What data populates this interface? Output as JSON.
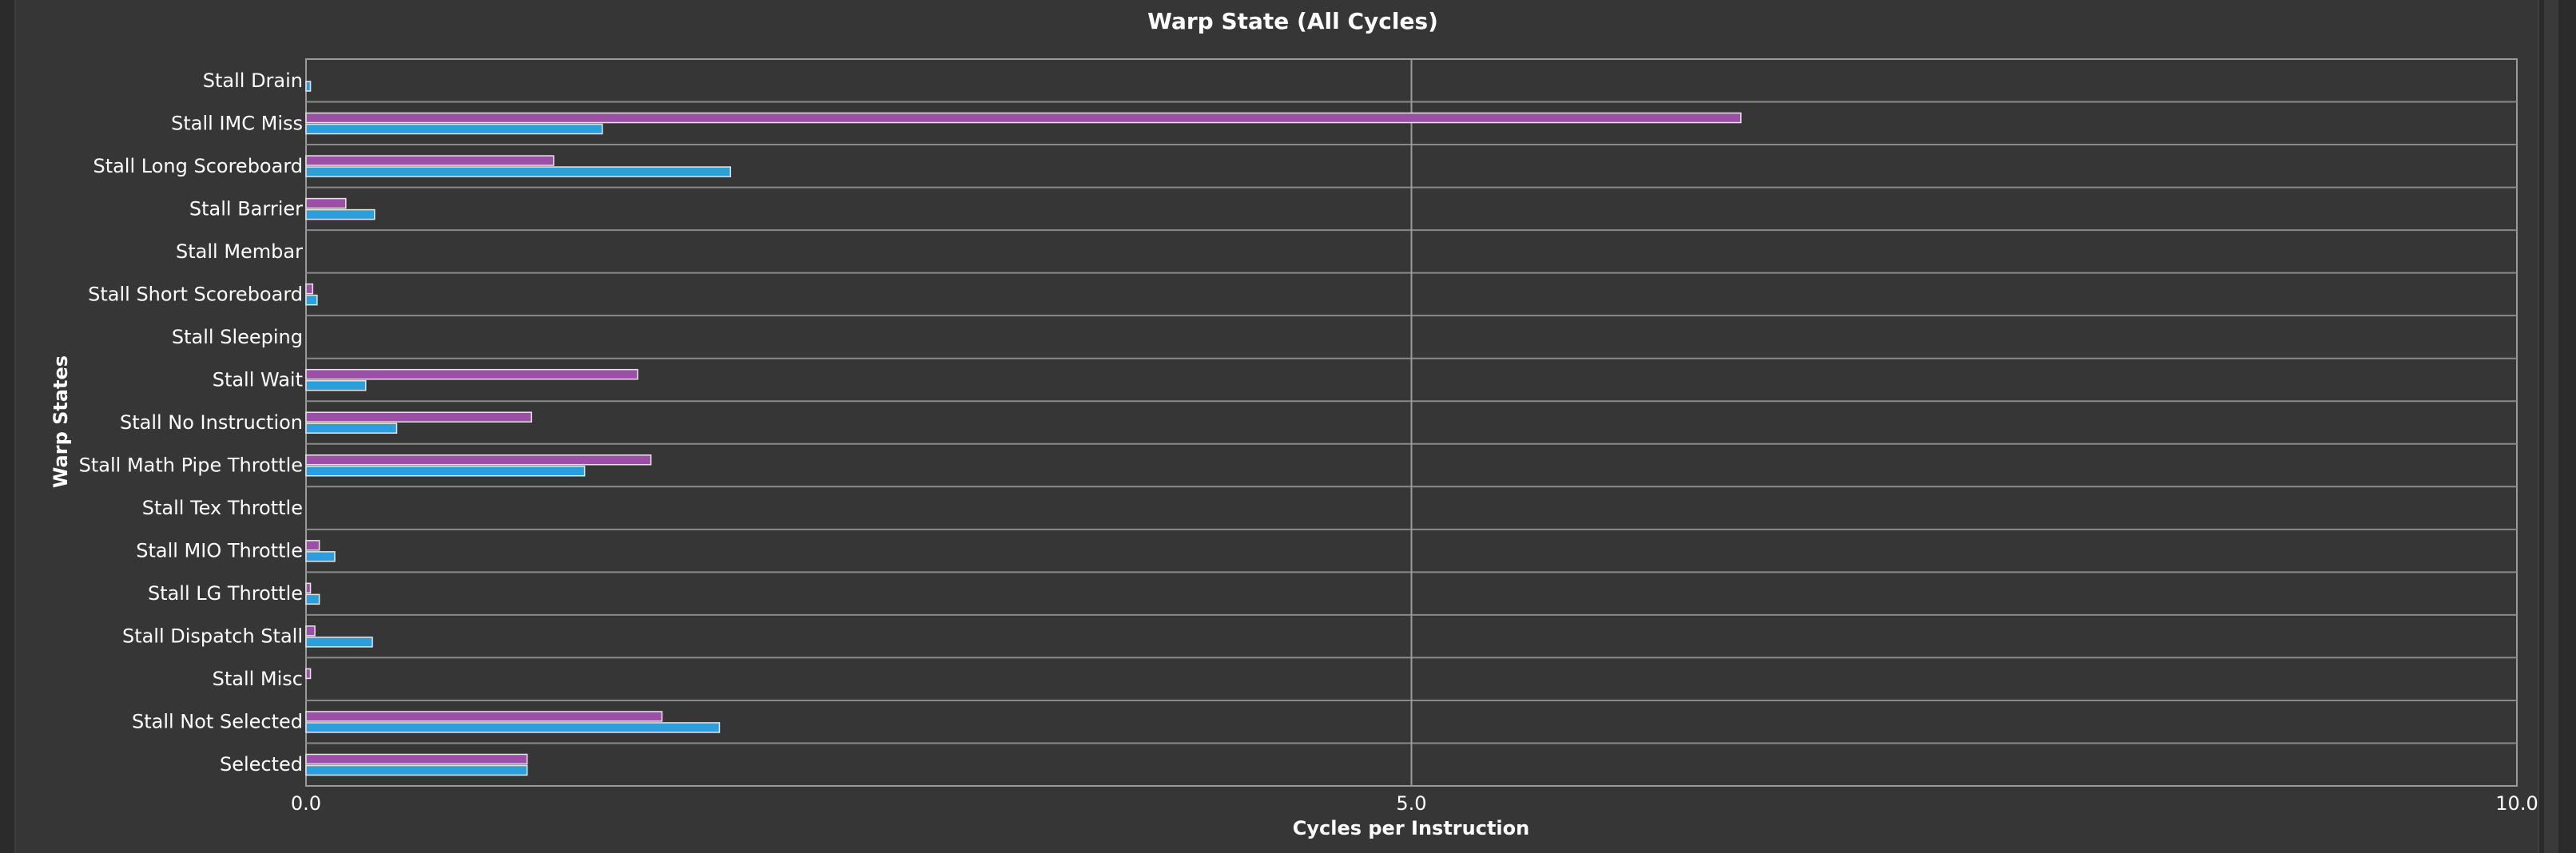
{
  "chart_data": {
    "type": "bar",
    "orientation": "horizontal",
    "title": "Warp State (All Cycles)",
    "xlabel": "Cycles per Instruction",
    "ylabel": "Warp States",
    "xlim": [
      0,
      10
    ],
    "xticks": [
      "0.0",
      "5.0",
      "10.0"
    ],
    "grid": true,
    "categories": [
      "Stall Drain",
      "Stall IMC Miss",
      "Stall Long Scoreboard",
      "Stall Barrier",
      "Stall Membar",
      "Stall Short Scoreboard",
      "Stall Sleeping",
      "Stall Wait",
      "Stall No Instruction",
      "Stall Math Pipe Throttle",
      "Stall Tex Throttle",
      "Stall MIO Throttle",
      "Stall LG Throttle",
      "Stall Dispatch Stall",
      "Stall Misc",
      "Stall Not Selected",
      "Selected"
    ],
    "series": [
      {
        "color": "#9b4fa6",
        "values": [
          0,
          6.49,
          1.12,
          0.18,
          0,
          0.03,
          0,
          1.5,
          1.02,
          1.56,
          0,
          0.06,
          0.02,
          0.04,
          0.02,
          1.61,
          1.0
        ]
      },
      {
        "color": "#2b9fdc",
        "values": [
          0.02,
          1.34,
          1.92,
          0.31,
          0,
          0.05,
          0,
          0.27,
          0.41,
          1.26,
          0,
          0.13,
          0.06,
          0.3,
          0,
          1.87,
          1.0
        ]
      }
    ]
  }
}
